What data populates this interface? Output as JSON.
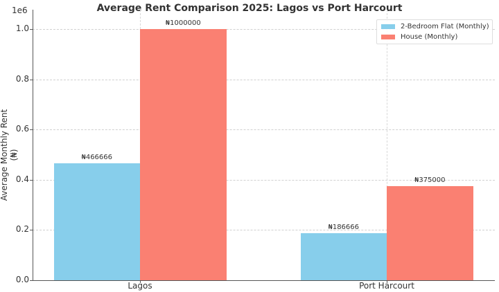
{
  "chart_data": {
    "type": "bar",
    "title": "Average Rent Comparison 2025: Lagos vs Port Harcourt",
    "xlabel": "",
    "ylabel": "Average Monthly Rent (₦)",
    "y_scale_label": "1e6",
    "ylim": [
      0,
      1.0
    ],
    "y_ticks": [
      "0.0",
      "0.2",
      "0.4",
      "0.6",
      "0.8",
      "1.0"
    ],
    "categories": [
      "Lagos",
      "Port Harcourt"
    ],
    "series": [
      {
        "name": "2-Bedroom Flat (Monthly)",
        "color": "#87CEEB",
        "values": [
          466666,
          186666
        ],
        "labels": [
          "₦466666",
          "₦186666"
        ]
      },
      {
        "name": "House (Monthly)",
        "color": "#FA8072",
        "values": [
          1000000,
          375000
        ],
        "labels": [
          "₦1000000",
          "₦375000"
        ]
      }
    ],
    "grid": true,
    "legend_position": "upper right"
  }
}
